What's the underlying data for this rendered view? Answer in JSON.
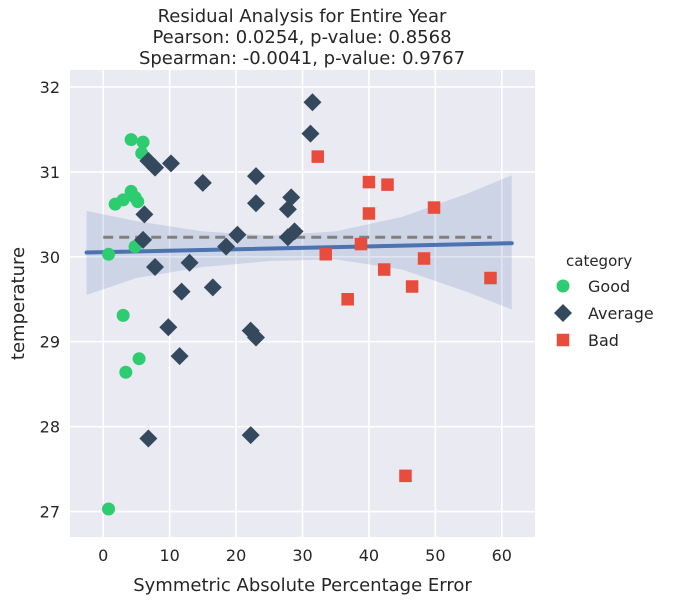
{
  "chart_data": {
    "type": "scatter",
    "title_lines": [
      "Residual Analysis for Entire Year",
      "Pearson: 0.0254, p-value: 0.8568",
      "Spearman: -0.0041, p-value: 0.9767"
    ],
    "xlabel": "Symmetric Absolute Percentage Error",
    "ylabel": "temperature",
    "xlim": [
      -5,
      65
    ],
    "ylim": [
      26.7,
      32.2
    ],
    "x_ticks": [
      0,
      10,
      20,
      30,
      40,
      50,
      60
    ],
    "y_ticks": [
      27,
      28,
      29,
      30,
      31,
      32
    ],
    "grid": true,
    "legend": {
      "title": "category",
      "placement": "right",
      "entries": [
        {
          "label": "Good",
          "marker": "circle",
          "color": "#2ecc71"
        },
        {
          "label": "Average",
          "marker": "diamond",
          "color": "#34495e"
        },
        {
          "label": "Bad",
          "marker": "square",
          "color": "#e74c3c"
        }
      ]
    },
    "series": [
      {
        "category": "Good",
        "marker": "circle",
        "color": "#2ecc71",
        "points": [
          [
            4.2,
            31.38
          ],
          [
            6.0,
            31.35
          ],
          [
            5.8,
            31.22
          ],
          [
            4.2,
            30.77
          ],
          [
            4.8,
            30.7
          ],
          [
            3.0,
            30.67
          ],
          [
            5.2,
            30.65
          ],
          [
            1.8,
            30.62
          ],
          [
            0.8,
            30.03
          ],
          [
            4.8,
            30.12
          ],
          [
            3.0,
            29.31
          ],
          [
            5.4,
            28.8
          ],
          [
            3.4,
            28.64
          ],
          [
            0.8,
            27.03
          ]
        ]
      },
      {
        "category": "Average",
        "marker": "diamond",
        "color": "#34495e",
        "points": [
          [
            31.5,
            31.82
          ],
          [
            31.2,
            31.45
          ],
          [
            6.8,
            31.13
          ],
          [
            10.2,
            31.1
          ],
          [
            7.8,
            31.05
          ],
          [
            15.0,
            30.87
          ],
          [
            23.0,
            30.95
          ],
          [
            28.3,
            30.7
          ],
          [
            23.0,
            30.63
          ],
          [
            27.8,
            30.56
          ],
          [
            6.2,
            30.5
          ],
          [
            28.8,
            30.3
          ],
          [
            20.2,
            30.26
          ],
          [
            27.8,
            30.23
          ],
          [
            6.0,
            30.2
          ],
          [
            18.5,
            30.12
          ],
          [
            13.0,
            29.93
          ],
          [
            7.8,
            29.88
          ],
          [
            16.5,
            29.64
          ],
          [
            11.8,
            29.59
          ],
          [
            9.8,
            29.17
          ],
          [
            22.2,
            29.13
          ],
          [
            23.0,
            29.05
          ],
          [
            11.5,
            28.83
          ],
          [
            6.8,
            27.86
          ],
          [
            22.2,
            27.9
          ]
        ]
      },
      {
        "category": "Bad",
        "marker": "square",
        "color": "#e74c3c",
        "points": [
          [
            32.3,
            31.18
          ],
          [
            40.0,
            30.88
          ],
          [
            42.8,
            30.85
          ],
          [
            40.0,
            30.51
          ],
          [
            49.8,
            30.58
          ],
          [
            38.8,
            30.15
          ],
          [
            33.5,
            30.03
          ],
          [
            48.3,
            29.98
          ],
          [
            42.3,
            29.85
          ],
          [
            58.3,
            29.75
          ],
          [
            46.5,
            29.65
          ],
          [
            36.8,
            29.5
          ],
          [
            45.5,
            27.42
          ]
        ]
      }
    ],
    "regression": {
      "color": "#4c72b0",
      "line": [
        [
          -2.5,
          30.05
        ],
        [
          61.5,
          30.16
        ]
      ],
      "ci_upper": [
        [
          -2.5,
          30.54
        ],
        [
          5,
          30.42
        ],
        [
          15,
          30.3
        ],
        [
          25,
          30.25
        ],
        [
          35,
          30.3
        ],
        [
          45,
          30.47
        ],
        [
          55,
          30.75
        ],
        [
          61.5,
          30.96
        ]
      ],
      "ci_lower": [
        [
          -2.5,
          29.55
        ],
        [
          5,
          29.75
        ],
        [
          15,
          29.88
        ],
        [
          25,
          29.95
        ],
        [
          35,
          29.97
        ],
        [
          45,
          29.85
        ],
        [
          55,
          29.58
        ],
        [
          61.5,
          29.38
        ]
      ]
    },
    "reference_line": {
      "y": 30.23,
      "x_range": [
        0,
        58.5
      ],
      "style": "dashed",
      "color": "#808080"
    }
  }
}
